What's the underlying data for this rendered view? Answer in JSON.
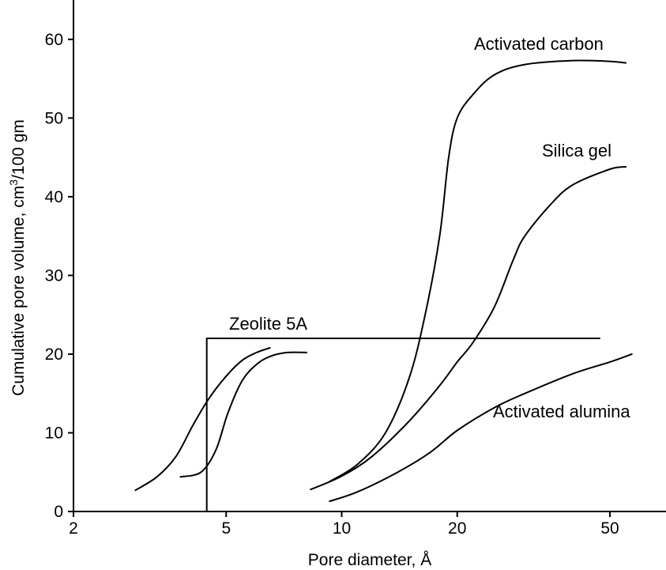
{
  "chart_data": {
    "type": "line",
    "x_scale": "log",
    "xlim": [
      2,
      70
    ],
    "ylim": [
      0,
      65
    ],
    "grid": false,
    "xlabel": "Pore diameter, Å",
    "ylabel_main": "Cumulative pore volume, cm",
    "ylabel_sup": "3",
    "ylabel_tail": "/100 gm",
    "x_ticks": [
      2,
      5,
      10,
      20,
      50
    ],
    "y_ticks": [
      0,
      10,
      20,
      30,
      40,
      50,
      60
    ],
    "series": [
      {
        "name": "Activated carbon",
        "points": [
          [
            9.3,
            3.8
          ],
          [
            11,
            6
          ],
          [
            13,
            10
          ],
          [
            15,
            17
          ],
          [
            16.5,
            25
          ],
          [
            18,
            35
          ],
          [
            19,
            45
          ],
          [
            20,
            50
          ],
          [
            22,
            53
          ],
          [
            25,
            55.5
          ],
          [
            30,
            56.8
          ],
          [
            40,
            57.3
          ],
          [
            50,
            57.2
          ],
          [
            55,
            57
          ]
        ]
      },
      {
        "name": "Silica gel",
        "points": [
          [
            8.3,
            2.8
          ],
          [
            10,
            4.5
          ],
          [
            12,
            7
          ],
          [
            15,
            11.5
          ],
          [
            18,
            16
          ],
          [
            20,
            19
          ],
          [
            22,
            21.5
          ],
          [
            25,
            26
          ],
          [
            28,
            32
          ],
          [
            30,
            35
          ],
          [
            35,
            39
          ],
          [
            40,
            41.5
          ],
          [
            50,
            43.5
          ],
          [
            55,
            43.8
          ]
        ]
      },
      {
        "name": "Activated alumina",
        "points": [
          [
            9.3,
            1.3
          ],
          [
            11,
            2.5
          ],
          [
            14,
            5
          ],
          [
            17,
            7.5
          ],
          [
            20,
            10.3
          ],
          [
            25,
            13.2
          ],
          [
            30,
            15
          ],
          [
            40,
            17.5
          ],
          [
            50,
            19
          ],
          [
            57,
            20
          ]
        ]
      },
      {
        "name": "",
        "points": [
          [
            2.9,
            2.7
          ],
          [
            3.3,
            4.4
          ],
          [
            3.7,
            7
          ],
          [
            4.1,
            11
          ],
          [
            4.5,
            14.3
          ],
          [
            5,
            17.2
          ],
          [
            5.5,
            19.2
          ],
          [
            6,
            20.2
          ],
          [
            6.5,
            20.8
          ]
        ]
      },
      {
        "name": "",
        "points": [
          [
            3.8,
            4.4
          ],
          [
            4.3,
            5
          ],
          [
            4.7,
            7.8
          ],
          [
            5.05,
            12.5
          ],
          [
            5.5,
            16.6
          ],
          [
            6,
            18.7
          ],
          [
            6.5,
            19.7
          ],
          [
            7.2,
            20.2
          ],
          [
            8.1,
            20.2
          ]
        ]
      },
      {
        "name": "Zeolite 5A",
        "points": [
          [
            4.45,
            0
          ],
          [
            4.45,
            22
          ],
          [
            47,
            22
          ]
        ]
      }
    ]
  }
}
